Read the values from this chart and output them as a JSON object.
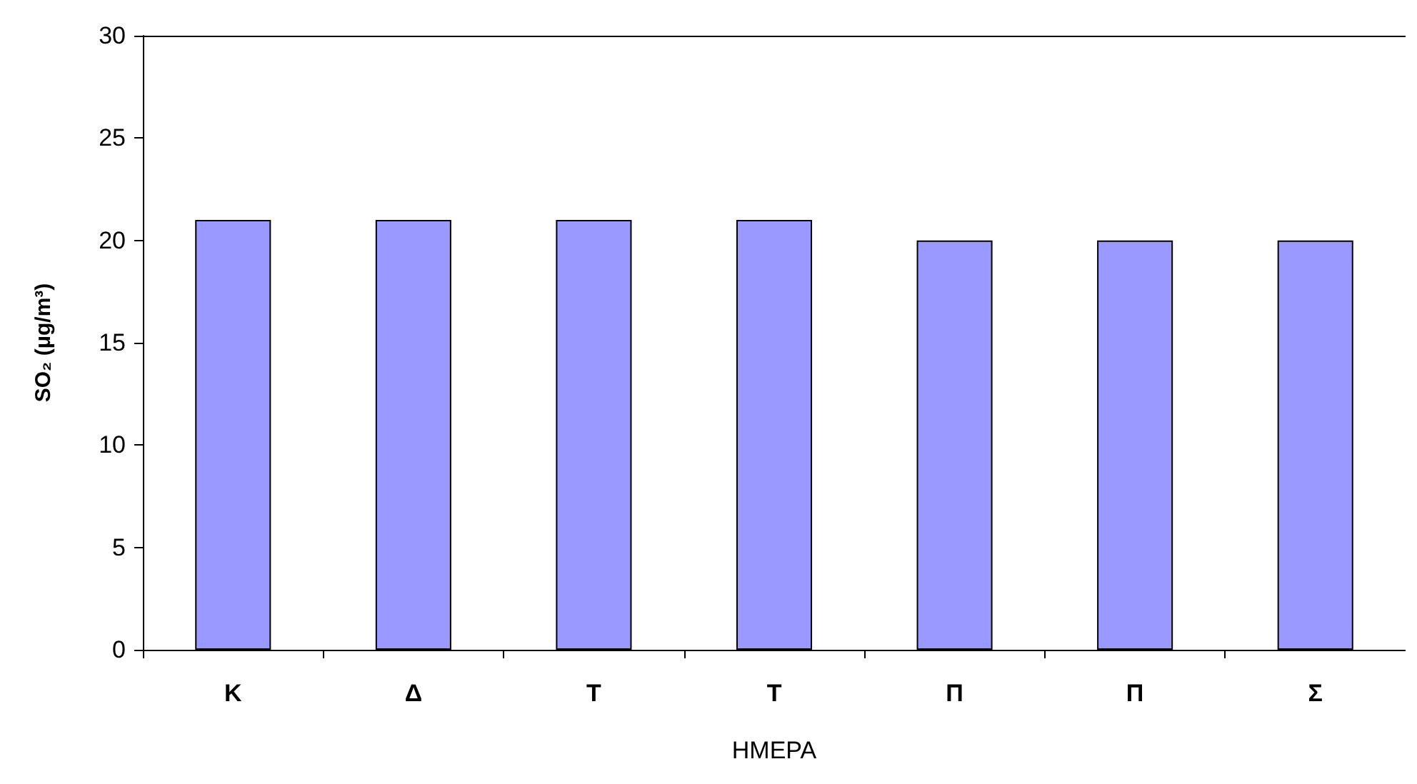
{
  "chart_data": {
    "type": "bar",
    "xlabel": "ΗΜΕΡΑ",
    "ylabel": "SO₂ (μg/m³)",
    "categories": [
      "Κ",
      "Δ",
      "Τ",
      "Τ",
      "Π",
      "Π",
      "Σ"
    ],
    "values": [
      21,
      21,
      21,
      21,
      20,
      20,
      20
    ],
    "color": "#9999ff",
    "ylim": [
      0,
      30
    ],
    "yticks": [
      0,
      5,
      10,
      15,
      20,
      25,
      30
    ],
    "grid": false
  }
}
